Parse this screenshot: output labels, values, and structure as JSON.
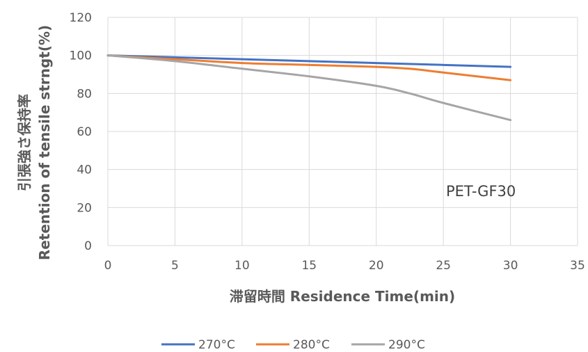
{
  "chart_data": {
    "type": "line",
    "xlabel": "滞留時間 Residence Time(min)",
    "ylabel_line1": "引張強さ保持率",
    "ylabel_line2": "Retention of tensile strngt(%)",
    "annotation": "PET-GF30",
    "xlim": [
      0,
      35
    ],
    "ylim": [
      0,
      120
    ],
    "x_ticks": [
      0,
      5,
      10,
      15,
      20,
      25,
      30,
      35
    ],
    "y_ticks": [
      0,
      20,
      40,
      60,
      80,
      100,
      120
    ],
    "grid": true,
    "legend_position": "bottom",
    "series": [
      {
        "name": "270°C",
        "color": "#4472C4",
        "x": [
          0,
          5,
          10,
          15,
          20,
          25,
          30
        ],
        "y": [
          100,
          99,
          98,
          97,
          96,
          95,
          94
        ]
      },
      {
        "name": "280°C",
        "color": "#ED7D31",
        "x": [
          0,
          5,
          10,
          15,
          20,
          22.5,
          25,
          30
        ],
        "y": [
          100,
          98,
          96,
          95,
          94,
          93,
          91,
          87
        ]
      },
      {
        "name": "290°C",
        "color": "#A5A5A5",
        "x": [
          0,
          5,
          10,
          15,
          20,
          22.5,
          25,
          30
        ],
        "y": [
          100,
          97,
          93,
          89,
          84,
          80,
          75,
          66
        ]
      }
    ]
  }
}
